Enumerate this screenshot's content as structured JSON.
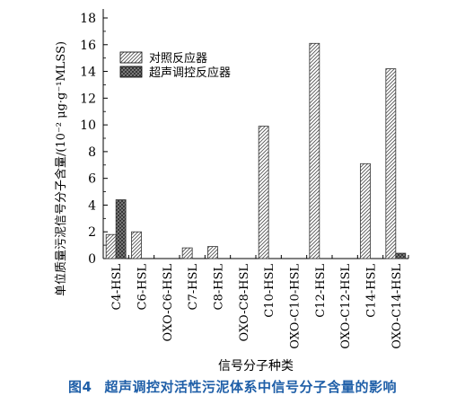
{
  "figure_caption": {
    "number": "图4",
    "text": "超声调控对活性污泥体系中信号分子含量的影响"
  },
  "colors": {
    "caption": "#1f5fa8",
    "series_1_fill": "#ffffff",
    "series_2_fill": "#8a8a8a",
    "axis": "#000000"
  },
  "chart_data": {
    "type": "bar",
    "title": "",
    "xlabel": "信号分子种类",
    "ylabel": "单位质量污泥信号分子含量/(10⁻² μg·g⁻¹MLSS)",
    "ylim": [
      0,
      18
    ],
    "yticks": [
      0,
      2,
      4,
      6,
      8,
      10,
      12,
      14,
      16,
      18
    ],
    "grid": false,
    "legend_position": "top-left",
    "categories": [
      "C4-HSL",
      "C6-HSL",
      "OXO-C6-HSL",
      "C7-HSL",
      "C8-HSL",
      "OXO-C8-HSL",
      "C10-HSL",
      "OXO-C10-HSL",
      "C12-HSL",
      "OXO-C12-HSL",
      "C14-HSL",
      "OXO-C14-HSL"
    ],
    "series": [
      {
        "name": "对照反应器",
        "pattern": "diagonal-hatch",
        "values": [
          1.8,
          2.0,
          0,
          0.8,
          0.9,
          0,
          9.9,
          0,
          16.1,
          0,
          7.1,
          14.2
        ]
      },
      {
        "name": "超声调控反应器",
        "pattern": "cross-hatch",
        "values": [
          4.4,
          0,
          0,
          0,
          0,
          0,
          0,
          0,
          0,
          0,
          0,
          0.4
        ]
      }
    ]
  }
}
